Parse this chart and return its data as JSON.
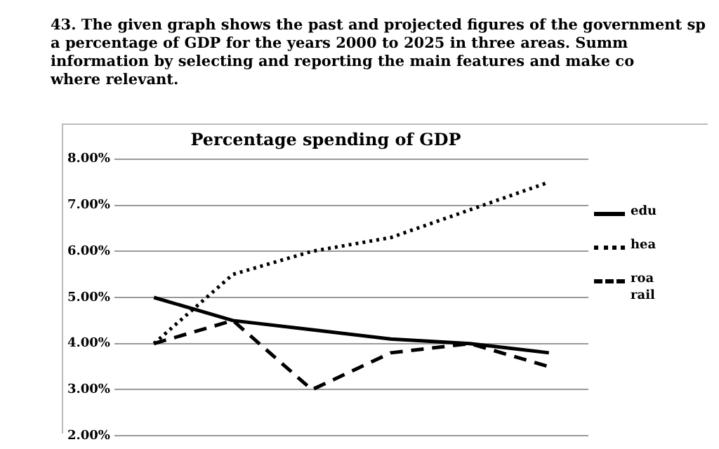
{
  "chart_data": {
    "type": "line",
    "title": "Percentage spending of GDP",
    "annotations": [
      "43. The given graph shows the past and projected figures of the government sp",
      "a percentage of GDP for the years 2000 to 2025 in three areas. Summ",
      "information by selecting and reporting the main features and make co",
      "where relevant."
    ],
    "categories": [
      null,
      null,
      null,
      null,
      null,
      null
    ],
    "series": [
      {
        "name": "edu",
        "color": "#000000",
        "line_style": "solid",
        "values": [
          5.0,
          4.5,
          4.3,
          4.1,
          4.0,
          3.8
        ]
      },
      {
        "name": "hea",
        "color": "#000000",
        "line_style": "dotted",
        "values": [
          4.0,
          5.5,
          6.0,
          6.3,
          6.9,
          7.5
        ]
      },
      {
        "name": "roa rail",
        "color": "#000000",
        "line_style": "dashed",
        "values": [
          4.0,
          4.5,
          3.0,
          3.8,
          4.0,
          3.5
        ]
      }
    ],
    "ylim": [
      2,
      8
    ],
    "yticks": [
      {
        "value": 2,
        "label": "2.00%"
      },
      {
        "value": 3,
        "label": "3.00%"
      },
      {
        "value": 4,
        "label": "4.00%"
      },
      {
        "value": 5,
        "label": "5.00%"
      },
      {
        "value": 6,
        "label": "6.00%"
      },
      {
        "value": 7,
        "label": "7.00%"
      },
      {
        "value": 8,
        "label": "8.00%"
      }
    ],
    "grid": "y",
    "legend": "right",
    "marker": "none",
    "tick_labels": "y"
  }
}
